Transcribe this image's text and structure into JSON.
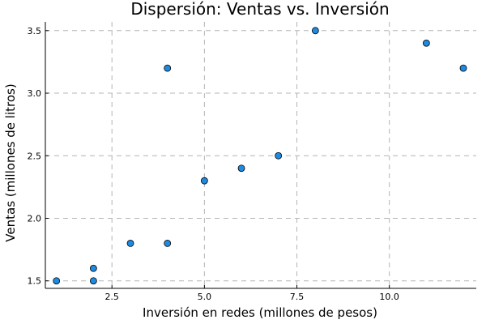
{
  "chart_data": {
    "type": "scatter",
    "title": "Dispersión: Ventas vs. Inversión",
    "xlabel": "Inversión en redes (millones de pesos)",
    "ylabel": "Ventas (millones de litros)",
    "xlim": [
      0.7,
      12.35
    ],
    "ylim": [
      1.44,
      3.57
    ],
    "xticks": [
      2.5,
      5.0,
      7.5,
      10.0
    ],
    "xtick_labels": [
      "2.5",
      "5.0",
      "7.5",
      "10.0"
    ],
    "yticks": [
      1.5,
      2.0,
      2.5,
      3.0,
      3.5
    ],
    "ytick_labels": [
      "1.5",
      "2.0",
      "2.5",
      "3.0",
      "3.5"
    ],
    "grid": true,
    "point_color": "#1e8ae0",
    "series": [
      {
        "x": [
          1,
          2,
          2,
          3,
          4,
          4,
          5,
          6,
          7,
          8,
          11,
          12
        ],
        "y": [
          1.5,
          1.5,
          1.6,
          1.8,
          1.8,
          3.2,
          2.3,
          2.4,
          2.5,
          3.5,
          3.4,
          3.2
        ]
      }
    ]
  }
}
